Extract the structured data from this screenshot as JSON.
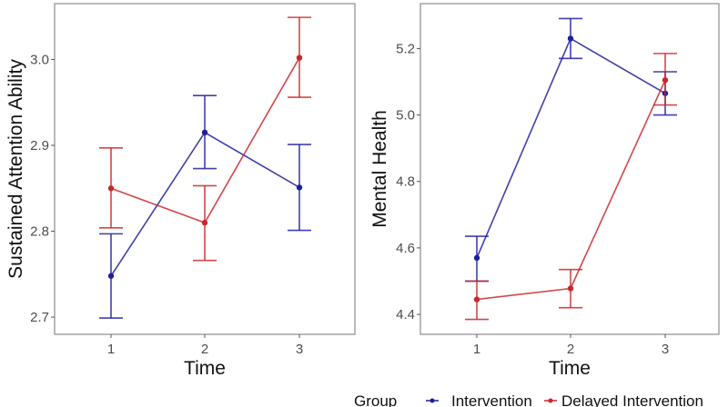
{
  "chart_data": [
    {
      "type": "line",
      "xlabel": "Time",
      "ylabel": "Sustained Attention Ability",
      "categories": [
        "1",
        "2",
        "3"
      ],
      "x": [
        1,
        2,
        3
      ],
      "ylim": [
        2.68,
        3.065
      ],
      "yticks": [
        "2.7",
        "2.8",
        "2.9",
        "3.0"
      ],
      "grid": false,
      "error_bars": true,
      "series": [
        {
          "name": "Intervention",
          "color": "#1f1fa0",
          "values": [
            2.748,
            2.915,
            2.851
          ],
          "lower": [
            2.699,
            2.873,
            2.801
          ],
          "upper": [
            2.797,
            2.958,
            2.901
          ]
        },
        {
          "name": "Delayed Intervention",
          "color": "#c8282a",
          "values": [
            2.85,
            2.81,
            3.002
          ],
          "lower": [
            2.804,
            2.766,
            2.956
          ],
          "upper": [
            2.897,
            2.853,
            3.049
          ]
        }
      ]
    },
    {
      "type": "line",
      "xlabel": "Time",
      "ylabel": "Mental Health",
      "categories": [
        "1",
        "2",
        "3"
      ],
      "x": [
        1,
        2,
        3
      ],
      "ylim": [
        4.34,
        5.335
      ],
      "yticks": [
        "4.4",
        "4.6",
        "4.8",
        "5.0",
        "5.2"
      ],
      "grid": false,
      "error_bars": true,
      "series": [
        {
          "name": "Intervention",
          "color": "#1f1fa0",
          "values": [
            4.57,
            5.23,
            5.065
          ],
          "lower": [
            4.5,
            5.17,
            5.0
          ],
          "upper": [
            4.635,
            5.29,
            5.13
          ]
        },
        {
          "name": "Delayed Intervention",
          "color": "#c8282a",
          "values": [
            4.445,
            4.478,
            5.105
          ],
          "lower": [
            4.385,
            4.42,
            5.03
          ],
          "upper": [
            4.5,
            4.535,
            5.185
          ]
        }
      ]
    }
  ],
  "legend": {
    "title": "Group",
    "placement": "bottom",
    "items": [
      {
        "label": "Intervention",
        "color": "#1f1fa0"
      },
      {
        "label": "Delayed Intervention",
        "color": "#c8282a"
      }
    ]
  }
}
